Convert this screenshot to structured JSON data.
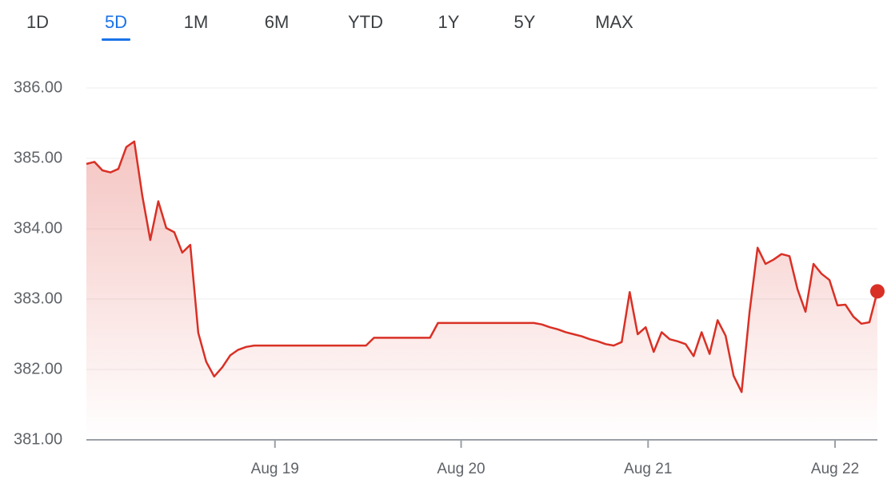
{
  "tabs": [
    "1D",
    "5D",
    "1M",
    "6M",
    "YTD",
    "1Y",
    "5Y",
    "MAX"
  ],
  "selected_tab": 1,
  "chart_data": {
    "type": "line",
    "color": "#d93025",
    "values": [
      384.92,
      384.95,
      384.83,
      384.8,
      384.85,
      385.16,
      385.24,
      384.47,
      383.84,
      384.39,
      384.01,
      383.95,
      383.66,
      383.77,
      382.52,
      382.11,
      381.9,
      382.03,
      382.2,
      382.28,
      382.32,
      382.34,
      382.34,
      382.34,
      382.34,
      382.34,
      382.34,
      382.34,
      382.34,
      382.34,
      382.34,
      382.34,
      382.34,
      382.34,
      382.34,
      382.34,
      382.45,
      382.45,
      382.45,
      382.45,
      382.45,
      382.45,
      382.45,
      382.45,
      382.66,
      382.66,
      382.66,
      382.66,
      382.66,
      382.66,
      382.66,
      382.66,
      382.66,
      382.66,
      382.66,
      382.66,
      382.66,
      382.64,
      382.6,
      382.57,
      382.53,
      382.5,
      382.47,
      382.43,
      382.4,
      382.36,
      382.34,
      382.39,
      383.1,
      382.5,
      382.6,
      382.25,
      382.53,
      382.43,
      382.4,
      382.36,
      382.19,
      382.53,
      382.22,
      382.7,
      382.48,
      381.91,
      381.68,
      382.82,
      383.73,
      383.5,
      383.56,
      383.64,
      383.61,
      383.14,
      382.82,
      383.5,
      383.36,
      383.27,
      382.91,
      382.92,
      382.75,
      382.65,
      382.67,
      383.11
    ],
    "xlim": [
      0,
      99
    ],
    "xticks": [
      {
        "value": 23.6,
        "label": "Aug 19"
      },
      {
        "value": 46.9,
        "label": "Aug 20"
      },
      {
        "value": 70.3,
        "label": "Aug 21"
      },
      {
        "value": 93.7,
        "label": "Aug 22"
      }
    ],
    "ylim": [
      381,
      386
    ],
    "yticks": [
      {
        "value": 381,
        "label": "381.00"
      },
      {
        "value": 382,
        "label": "382.00"
      },
      {
        "value": 383,
        "label": "383.00"
      },
      {
        "value": 384,
        "label": "384.00"
      },
      {
        "value": 385,
        "label": "385.00"
      },
      {
        "value": 386,
        "label": "386.00"
      }
    ],
    "grid": true
  }
}
